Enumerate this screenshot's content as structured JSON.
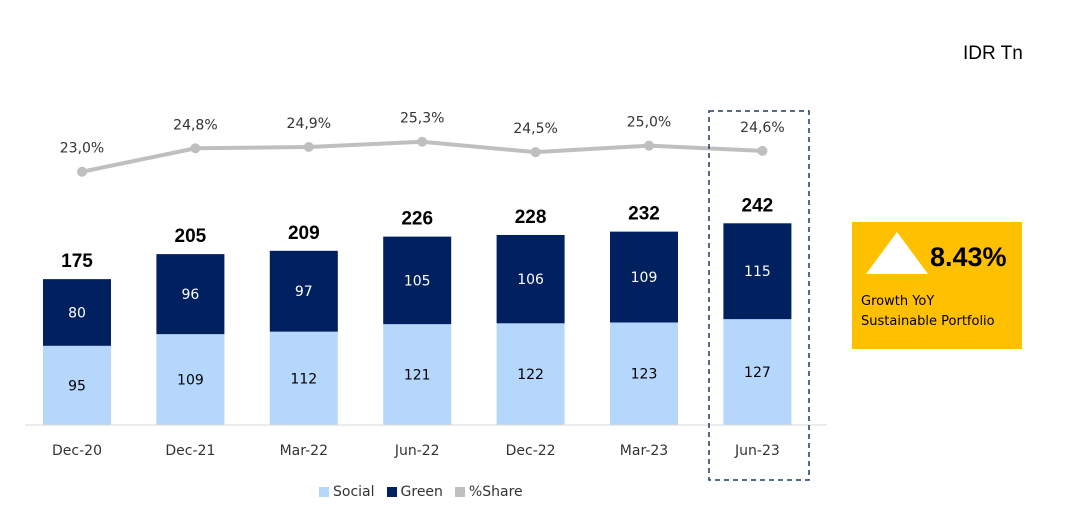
{
  "unit_label": "IDR Tn",
  "colors": {
    "social": "#b4d7fb",
    "green": "#002060",
    "share": "#bfbfbf",
    "highlight": "#1f3864",
    "growth_box": "#ffc000"
  },
  "growth": {
    "value": "8.43%",
    "caption_line1": "Growth YoY",
    "caption_line2": "Sustainable Portfolio",
    "icon": "up-triangle-icon"
  },
  "legend": [
    {
      "name": "Social",
      "color": "#b4d7fb",
      "shape": "square"
    },
    {
      "name": "Green",
      "color": "#002060",
      "shape": "square"
    },
    {
      "name": "%Share",
      "color": "#bfbfbf",
      "shape": "square"
    }
  ],
  "chart_data": {
    "type": "bar",
    "stacked": true,
    "categories": [
      "Dec-20",
      "Dec-21",
      "Mar-22",
      "Jun-22",
      "Dec-22",
      "Mar-23",
      "Jun-23"
    ],
    "series": [
      {
        "name": "Social",
        "values": [
          95,
          109,
          112,
          121,
          122,
          123,
          127
        ],
        "labels": [
          "95",
          "109",
          "112",
          "121",
          "122",
          "123",
          "127"
        ]
      },
      {
        "name": "Green",
        "values": [
          80,
          96,
          97,
          105,
          106,
          109,
          115
        ],
        "labels": [
          "80",
          "96",
          "97",
          "105",
          "106",
          "109",
          "115"
        ]
      }
    ],
    "totals": [
      175,
      205,
      209,
      226,
      228,
      232,
      242
    ],
    "total_labels": [
      "175",
      "205",
      "209",
      "226",
      "228",
      "232",
      "242"
    ],
    "line_series": {
      "name": "%Share",
      "values": [
        23.0,
        24.8,
        24.9,
        25.3,
        24.5,
        25.0,
        24.6
      ],
      "labels": [
        "23,0%",
        "24,8%",
        "24,9%",
        "25,3%",
        "24,5%",
        "25,0%",
        "24,6%"
      ],
      "display_range": [
        17.0,
        26.2
      ]
    },
    "highlighted_category": "Jun-23",
    "grid": false,
    "legend_position": "bottom-center"
  }
}
